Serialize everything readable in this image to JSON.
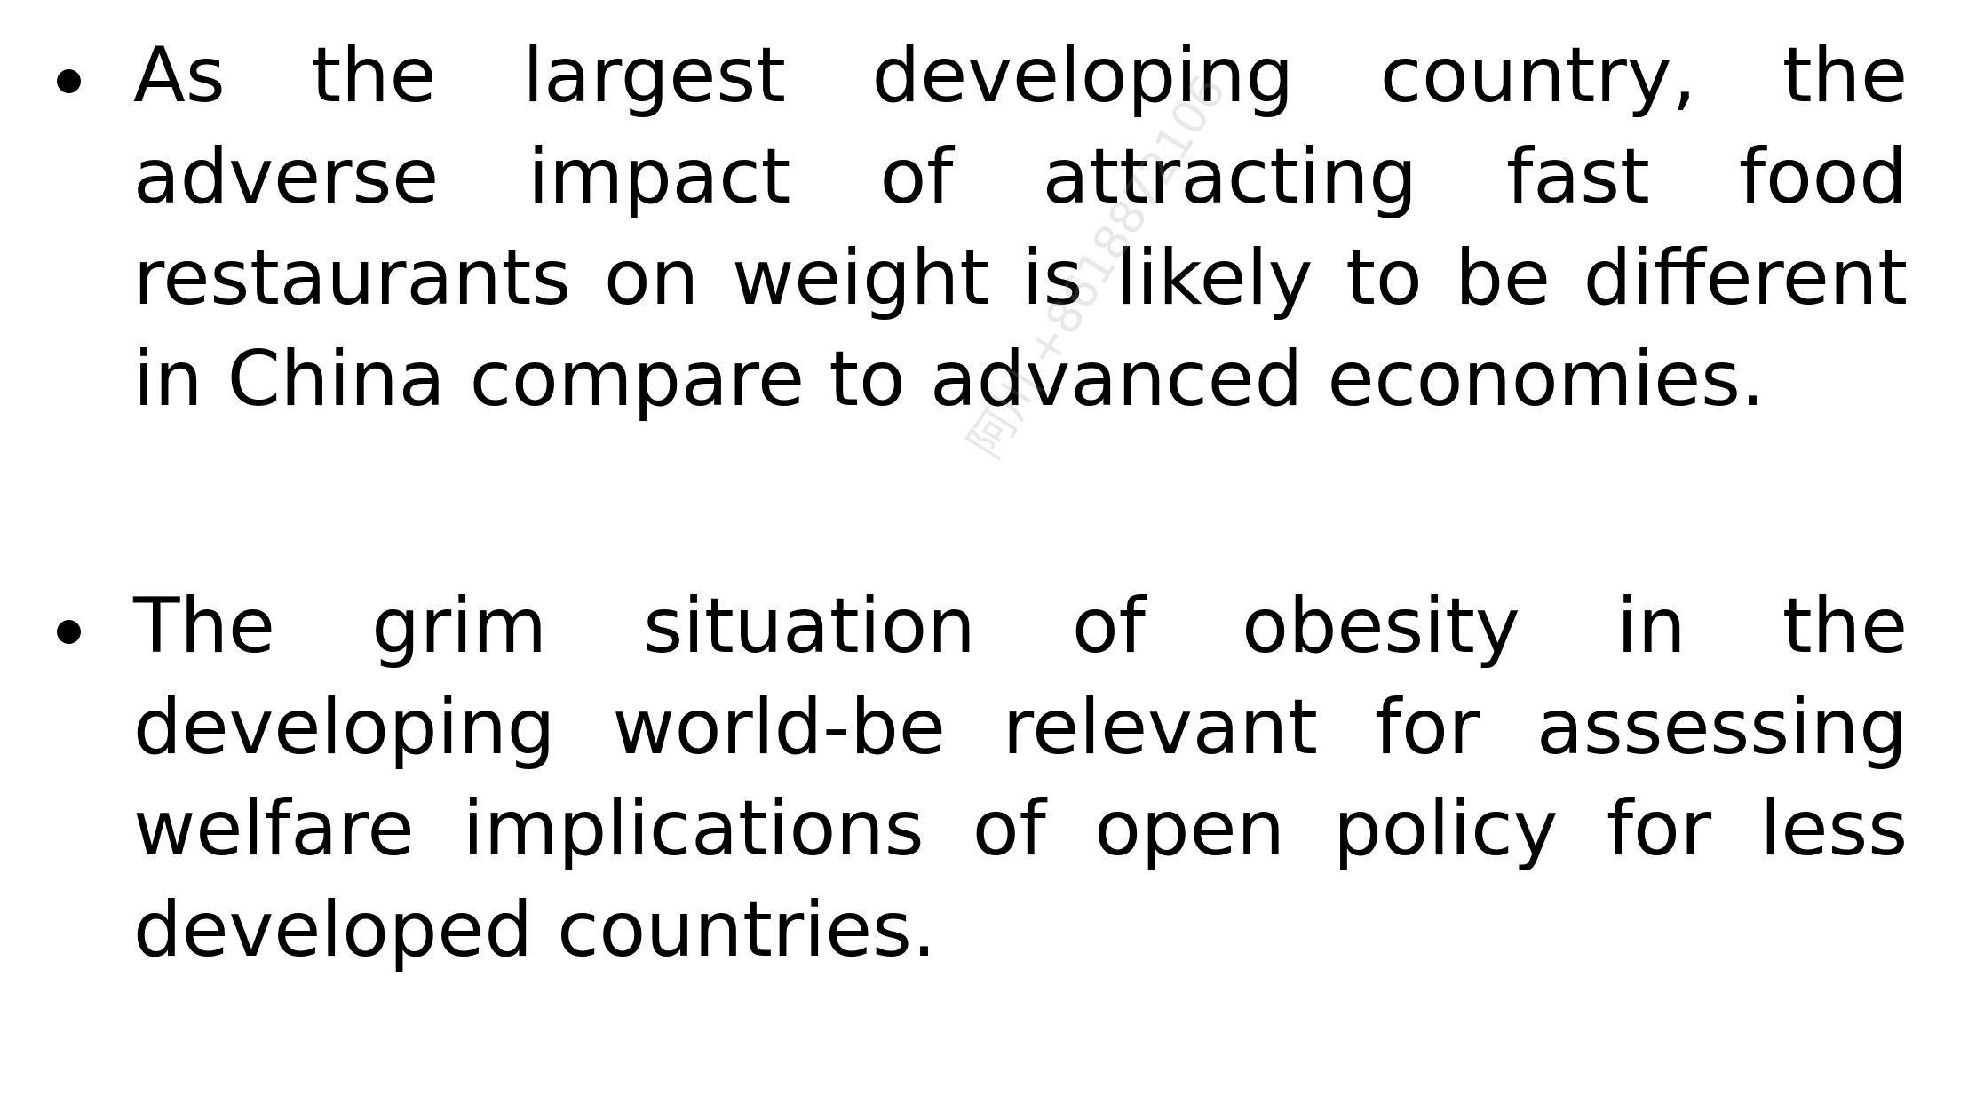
{
  "bullets": [
    {
      "text": "As the largest developing country, the adverse impact of attracting fast food restaurants on weight is likely to be different in China compare to advanced economies."
    },
    {
      "text": "The grim situation of obesity in the developing world-be relevant for assessing welfare implications of open policy for less developed countries."
    }
  ],
  "watermark": {
    "text": "阿川 +8618872106"
  }
}
